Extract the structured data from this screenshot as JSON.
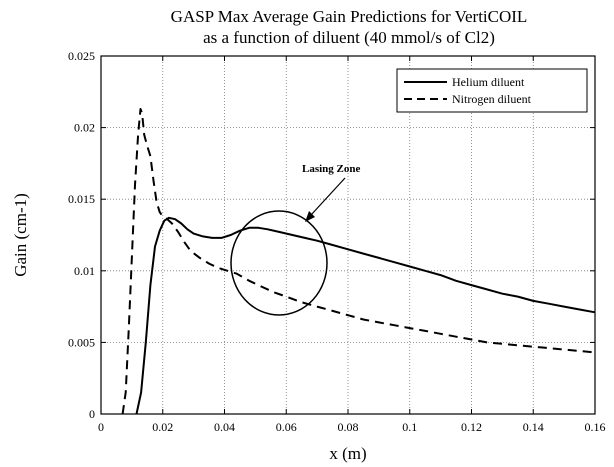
{
  "chart_data": {
    "type": "line",
    "title": "GASP Max Average Gain Predictions for VertiCOIL",
    "subtitle": "as a function of diluent (40 mmol/s of Cl2)",
    "xlabel": "x (m)",
    "ylabel": "Gain (cm-1)",
    "xlim": [
      0,
      0.16
    ],
    "ylim": [
      0,
      0.025
    ],
    "x_ticks": [
      "0",
      "0.02",
      "0.04",
      "0.06",
      "0.08",
      "0.1",
      "0.12",
      "0.14",
      "0.16"
    ],
    "y_ticks": [
      "0",
      "0.005",
      "0.01",
      "0.015",
      "0.02",
      "0.025"
    ],
    "grid": true,
    "legend_position": "top-right",
    "series": [
      {
        "name": "Helium diluent",
        "style": "solid",
        "points": [
          [
            0.0115,
            0
          ],
          [
            0.013,
            0.0015
          ],
          [
            0.0145,
            0.005
          ],
          [
            0.016,
            0.009
          ],
          [
            0.0175,
            0.0117
          ],
          [
            0.019,
            0.0128
          ],
          [
            0.0205,
            0.0135
          ],
          [
            0.022,
            0.0137
          ],
          [
            0.024,
            0.0136
          ],
          [
            0.026,
            0.0133
          ],
          [
            0.028,
            0.0129
          ],
          [
            0.03,
            0.0126
          ],
          [
            0.033,
            0.0124
          ],
          [
            0.036,
            0.0123
          ],
          [
            0.039,
            0.0123
          ],
          [
            0.042,
            0.0125
          ],
          [
            0.045,
            0.0128
          ],
          [
            0.048,
            0.013
          ],
          [
            0.051,
            0.013
          ],
          [
            0.054,
            0.0129
          ],
          [
            0.058,
            0.0127
          ],
          [
            0.062,
            0.0125
          ],
          [
            0.066,
            0.0123
          ],
          [
            0.07,
            0.0121
          ],
          [
            0.075,
            0.0118
          ],
          [
            0.08,
            0.0115
          ],
          [
            0.085,
            0.0112
          ],
          [
            0.09,
            0.0109
          ],
          [
            0.095,
            0.0106
          ],
          [
            0.1,
            0.0103
          ],
          [
            0.105,
            0.01
          ],
          [
            0.11,
            0.0097
          ],
          [
            0.115,
            0.0093
          ],
          [
            0.12,
            0.009
          ],
          [
            0.125,
            0.0087
          ],
          [
            0.13,
            0.0084
          ],
          [
            0.135,
            0.0082
          ],
          [
            0.14,
            0.0079
          ],
          [
            0.145,
            0.0077
          ],
          [
            0.15,
            0.0075
          ],
          [
            0.155,
            0.0073
          ],
          [
            0.16,
            0.0071
          ]
        ]
      },
      {
        "name": "Nitrogen diluent",
        "style": "dashed",
        "points": [
          [
            0.007,
            0
          ],
          [
            0.008,
            0.0015
          ],
          [
            0.009,
            0.006
          ],
          [
            0.01,
            0.011
          ],
          [
            0.011,
            0.016
          ],
          [
            0.012,
            0.0195
          ],
          [
            0.0128,
            0.0213
          ],
          [
            0.0133,
            0.021
          ],
          [
            0.014,
            0.0195
          ],
          [
            0.015,
            0.0187
          ],
          [
            0.016,
            0.018
          ],
          [
            0.017,
            0.0163
          ],
          [
            0.018,
            0.0148
          ],
          [
            0.019,
            0.0141
          ],
          [
            0.02,
            0.0138
          ],
          [
            0.021,
            0.0137
          ],
          [
            0.023,
            0.0133
          ],
          [
            0.025,
            0.0127
          ],
          [
            0.027,
            0.012
          ],
          [
            0.029,
            0.0114
          ],
          [
            0.032,
            0.0109
          ],
          [
            0.035,
            0.0105
          ],
          [
            0.038,
            0.0102
          ],
          [
            0.041,
            0.01
          ],
          [
            0.044,
            0.0098
          ],
          [
            0.048,
            0.0093
          ],
          [
            0.052,
            0.0089
          ],
          [
            0.056,
            0.0085
          ],
          [
            0.06,
            0.0082
          ],
          [
            0.065,
            0.0078
          ],
          [
            0.07,
            0.0075
          ],
          [
            0.075,
            0.0072
          ],
          [
            0.08,
            0.0069
          ],
          [
            0.085,
            0.0066
          ],
          [
            0.09,
            0.0064
          ],
          [
            0.095,
            0.0062
          ],
          [
            0.1,
            0.006
          ],
          [
            0.105,
            0.0058
          ],
          [
            0.11,
            0.0056
          ],
          [
            0.115,
            0.0054
          ],
          [
            0.12,
            0.0052
          ],
          [
            0.125,
            0.005
          ],
          [
            0.13,
            0.0049
          ],
          [
            0.135,
            0.0048
          ],
          [
            0.14,
            0.0047
          ],
          [
            0.145,
            0.0046
          ],
          [
            0.15,
            0.0045
          ],
          [
            0.155,
            0.0044
          ],
          [
            0.16,
            0.0043
          ]
        ]
      }
    ],
    "annotations": [
      {
        "text": "Lasing Zone"
      }
    ]
  }
}
